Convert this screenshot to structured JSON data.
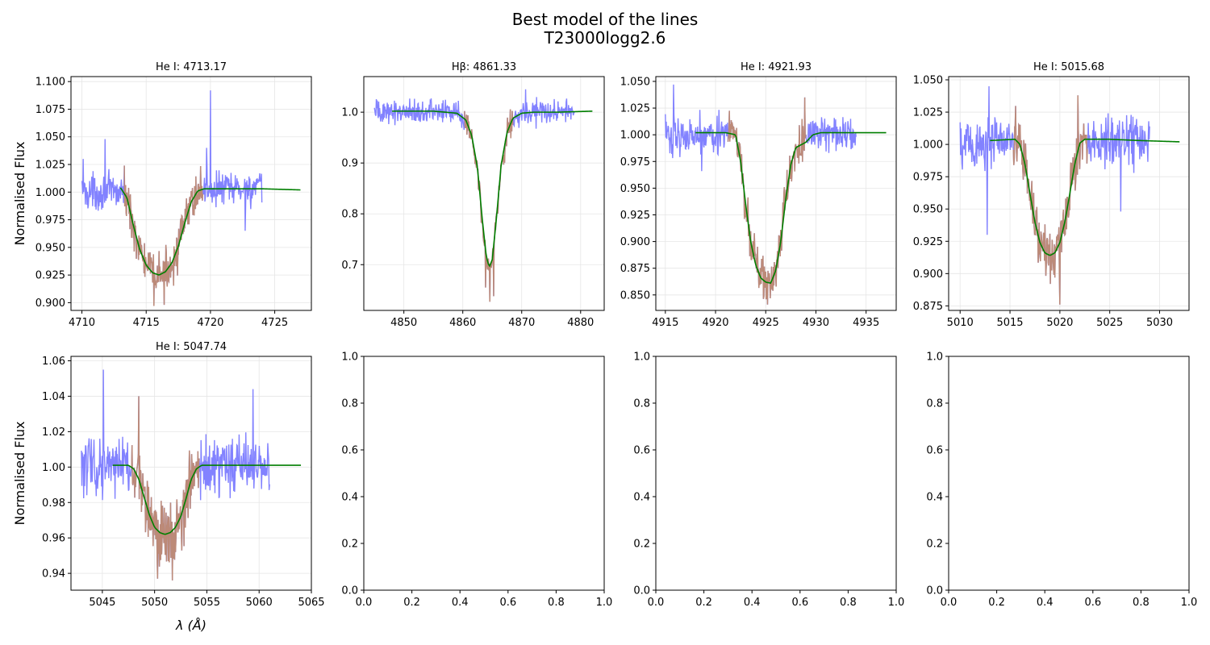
{
  "figure": {
    "title_line1": "Best model of the lines",
    "title_line2": "T23000logg2.6"
  },
  "colors": {
    "observed": "#7b7bff",
    "line_region": "#bc8a78",
    "model": "#007f00",
    "grid": "#e6e6e6",
    "axes": "#000000"
  },
  "chart_data": [
    {
      "type": "line",
      "title": "He I: 4713.17",
      "ylabel": "Normalised Flux",
      "xlabel": "",
      "xlim": [
        4709.15,
        4727.85
      ],
      "ylim": [
        0.893,
        1.1045
      ],
      "xticks": [
        4710,
        4715,
        4720,
        4725
      ],
      "xtick_labels": [
        "4710",
        "4715",
        "4720",
        "4725"
      ],
      "yticks": [
        0.9,
        0.925,
        0.95,
        0.975,
        1.0,
        1.025,
        1.05,
        1.075,
        1.1
      ],
      "ytick_labels": [
        "0.900",
        "0.925",
        "0.950",
        "0.975",
        "1.000",
        "1.025",
        "1.050",
        "1.075",
        "1.100"
      ],
      "grid": true,
      "observed_range": [
        4710.0,
        4724.0
      ],
      "line_region": [
        4713.3,
        4719.4
      ],
      "model": {
        "x": [
          4713.0,
          4713.5,
          4714.0,
          4714.5,
          4715.0,
          4715.5,
          4716.0,
          4716.5,
          4717.0,
          4717.5,
          4718.0,
          4718.5,
          4719.0,
          4719.5,
          4720.0,
          4722.0,
          4724.0,
          4727.0
        ],
        "y": [
          1.004,
          0.995,
          0.97,
          0.948,
          0.934,
          0.927,
          0.925,
          0.928,
          0.936,
          0.951,
          0.972,
          0.991,
          1.001,
          1.003,
          1.003,
          1.003,
          1.003,
          1.002
        ]
      },
      "continuum": 1.0,
      "noise": 0.011,
      "spikes": [
        [
          4710.1,
          1.03
        ],
        [
          4711.8,
          1.048
        ],
        [
          4715.6,
          0.897
        ],
        [
          4716.4,
          0.898
        ],
        [
          4719.7,
          1.04
        ],
        [
          4720.0,
          1.092
        ],
        [
          4722.7,
          0.965
        ]
      ]
    },
    {
      "type": "line",
      "title": "Hβ: 4861.33",
      "ylabel": "",
      "xlabel": "",
      "xlim": [
        4843.2,
        4884.0
      ],
      "ylim": [
        0.61,
        1.07
      ],
      "xticks": [
        4850,
        4860,
        4870,
        4880
      ],
      "xtick_labels": [
        "4850",
        "4860",
        "4870",
        "4880"
      ],
      "yticks": [
        0.7,
        0.8,
        0.9,
        1.0
      ],
      "ytick_labels": [
        "0.7",
        "0.8",
        "0.9",
        "1.0"
      ],
      "grid": true,
      "observed_range": [
        4845.0,
        4879.0
      ],
      "line_region": [
        4860.3,
        4868.5
      ],
      "model": {
        "x": [
          4848.0,
          4855.0,
          4859.0,
          4860.5,
          4861.5,
          4862.5,
          4863.3,
          4864.0,
          4864.5,
          4865.0,
          4865.7,
          4866.5,
          4867.5,
          4868.5,
          4870.0,
          4872.0,
          4876.0,
          4882.0
        ],
        "y": [
          1.002,
          1.002,
          0.998,
          0.985,
          0.955,
          0.89,
          0.79,
          0.715,
          0.695,
          0.71,
          0.79,
          0.895,
          0.96,
          0.988,
          0.998,
          1.0,
          1.0,
          1.002
        ]
      },
      "continuum": 1.0,
      "noise": 0.016,
      "spikes": [
        [
          4864.6,
          0.627
        ],
        [
          4865.2,
          0.638
        ],
        [
          4870.7,
          1.045
        ],
        [
          4863.9,
          0.655
        ]
      ]
    },
    {
      "type": "line",
      "title": "He I: 4921.93",
      "ylabel": "",
      "xlabel": "",
      "xlim": [
        4914.05,
        4938.0
      ],
      "ylim": [
        0.8355,
        1.0545
      ],
      "xticks": [
        4915,
        4920,
        4925,
        4930,
        4935
      ],
      "xtick_labels": [
        "4915",
        "4920",
        "4925",
        "4930",
        "4935"
      ],
      "yticks": [
        0.85,
        0.875,
        0.9,
        0.925,
        0.95,
        0.975,
        1.0,
        1.025,
        1.05
      ],
      "ytick_labels": [
        "0.850",
        "0.875",
        "0.900",
        "0.925",
        "0.950",
        "0.975",
        "1.000",
        "1.025",
        "1.050"
      ],
      "grid": true,
      "observed_range": [
        4915.0,
        4934.0
      ],
      "line_region": [
        4921.2,
        4929.0
      ],
      "model": {
        "x": [
          4918.0,
          4921.0,
          4922.0,
          4922.5,
          4923.0,
          4923.5,
          4924.0,
          4924.5,
          4925.0,
          4925.5,
          4926.0,
          4926.5,
          4927.0,
          4927.5,
          4928.0,
          4929.0,
          4929.7,
          4930.5,
          4933.0,
          4937.0
        ],
        "y": [
          1.002,
          1.002,
          1.0,
          0.975,
          0.935,
          0.9,
          0.878,
          0.866,
          0.862,
          0.861,
          0.873,
          0.9,
          0.94,
          0.972,
          0.988,
          0.993,
          1.0,
          1.002,
          1.002,
          1.002
        ]
      },
      "continuum": 1.0,
      "noise": 0.012,
      "spikes": [
        [
          4915.8,
          1.047
        ],
        [
          4925.2,
          0.841
        ],
        [
          4928.9,
          1.035
        ],
        [
          4918.6,
          0.966
        ]
      ]
    },
    {
      "type": "line",
      "title": "He I: 5015.68",
      "ylabel": "",
      "xlabel": "",
      "xlim": [
        5008.85,
        5032.95
      ],
      "ylim": [
        0.8715,
        1.0525
      ],
      "xticks": [
        5010,
        5015,
        5020,
        5025,
        5030
      ],
      "xtick_labels": [
        "5010",
        "5015",
        "5020",
        "5025",
        "5030"
      ],
      "yticks": [
        0.875,
        0.9,
        0.925,
        0.95,
        0.975,
        1.0,
        1.025,
        1.05
      ],
      "ytick_labels": [
        "0.875",
        "0.900",
        "0.925",
        "0.950",
        "0.975",
        "1.000",
        "1.025",
        "1.050"
      ],
      "grid": true,
      "observed_range": [
        5010.0,
        5029.0
      ],
      "line_region": [
        5015.3,
        5022.8
      ],
      "model": {
        "x": [
          5013.0,
          5015.5,
          5016.0,
          5016.5,
          5017.0,
          5017.5,
          5018.0,
          5018.5,
          5019.0,
          5019.5,
          5020.0,
          5020.5,
          5021.0,
          5021.5,
          5022.0,
          5022.5,
          5025.0,
          5028.0,
          5032.0
        ],
        "y": [
          1.003,
          1.004,
          1.0,
          0.985,
          0.962,
          0.94,
          0.924,
          0.916,
          0.914,
          0.916,
          0.924,
          0.94,
          0.962,
          0.985,
          1.001,
          1.004,
          1.004,
          1.003,
          1.002
        ]
      },
      "continuum": 1.0,
      "noise": 0.014,
      "spikes": [
        [
          5012.7,
          0.93
        ],
        [
          5020.0,
          0.876
        ],
        [
          5021.8,
          1.038
        ],
        [
          5026.1,
          0.948
        ],
        [
          5012.9,
          1.045
        ]
      ]
    },
    {
      "type": "line",
      "title": "He I: 5047.74",
      "ylabel": "Normalised Flux",
      "xlabel": "λ (Å)",
      "xlim": [
        5042.0,
        5065.0
      ],
      "ylim": [
        0.9305,
        1.0625
      ],
      "xticks": [
        5045,
        5050,
        5055,
        5060,
        5065
      ],
      "xtick_labels": [
        "5045",
        "5050",
        "5055",
        "5060",
        "5065"
      ],
      "yticks": [
        0.94,
        0.96,
        0.98,
        1.0,
        1.02,
        1.04,
        1.06
      ],
      "ytick_labels": [
        "0.94",
        "0.96",
        "0.98",
        "1.00",
        "1.02",
        "1.04",
        "1.06"
      ],
      "grid": true,
      "observed_range": [
        5043.0,
        5061.0
      ],
      "line_region": [
        5047.8,
        5054.3
      ],
      "model": {
        "x": [
          5046.0,
          5047.5,
          5048.0,
          5048.5,
          5049.0,
          5049.5,
          5050.0,
          5050.5,
          5051.0,
          5051.5,
          5052.0,
          5052.5,
          5053.0,
          5053.5,
          5054.0,
          5054.5,
          5058.0,
          5064.0
        ],
        "y": [
          1.001,
          1.001,
          0.999,
          0.993,
          0.983,
          0.973,
          0.966,
          0.963,
          0.962,
          0.963,
          0.966,
          0.972,
          0.982,
          0.993,
          0.999,
          1.001,
          1.001,
          1.001
        ]
      },
      "continuum": 1.0,
      "noise": 0.011,
      "spikes": [
        [
          5045.1,
          1.055
        ],
        [
          5048.5,
          1.04
        ],
        [
          5051.7,
          0.936
        ],
        [
          5052.0,
          0.952
        ],
        [
          5059.4,
          1.044
        ],
        [
          5050.3,
          0.937
        ]
      ]
    },
    {
      "type": "line",
      "title": "",
      "ylabel": "",
      "xlabel": "",
      "xlim": [
        0,
        1
      ],
      "ylim": [
        0,
        1
      ],
      "xticks": [
        0,
        0.2,
        0.4,
        0.6,
        0.8,
        1.0
      ],
      "xtick_labels": [
        "0.0",
        "0.2",
        "0.4",
        "0.6",
        "0.8",
        "1.0"
      ],
      "yticks": [
        0,
        0.2,
        0.4,
        0.6,
        0.8,
        1.0
      ],
      "ytick_labels": [
        "0.0",
        "0.2",
        "0.4",
        "0.6",
        "0.8",
        "1.0"
      ],
      "grid": false,
      "empty": true
    },
    {
      "type": "line",
      "title": "",
      "ylabel": "",
      "xlabel": "",
      "xlim": [
        0,
        1
      ],
      "ylim": [
        0,
        1
      ],
      "xticks": [
        0,
        0.2,
        0.4,
        0.6,
        0.8,
        1.0
      ],
      "xtick_labels": [
        "0.0",
        "0.2",
        "0.4",
        "0.6",
        "0.8",
        "1.0"
      ],
      "yticks": [
        0,
        0.2,
        0.4,
        0.6,
        0.8,
        1.0
      ],
      "ytick_labels": [
        "0.0",
        "0.2",
        "0.4",
        "0.6",
        "0.8",
        "1.0"
      ],
      "grid": false,
      "empty": true
    },
    {
      "type": "line",
      "title": "",
      "ylabel": "",
      "xlabel": "",
      "xlim": [
        0,
        1
      ],
      "ylim": [
        0,
        1
      ],
      "xticks": [
        0,
        0.2,
        0.4,
        0.6,
        0.8,
        1.0
      ],
      "xtick_labels": [
        "0.0",
        "0.2",
        "0.4",
        "0.6",
        "0.8",
        "1.0"
      ],
      "yticks": [
        0,
        0.2,
        0.4,
        0.6,
        0.8,
        1.0
      ],
      "ytick_labels": [
        "0.0",
        "0.2",
        "0.4",
        "0.6",
        "0.8",
        "1.0"
      ],
      "grid": false,
      "empty": true
    }
  ]
}
